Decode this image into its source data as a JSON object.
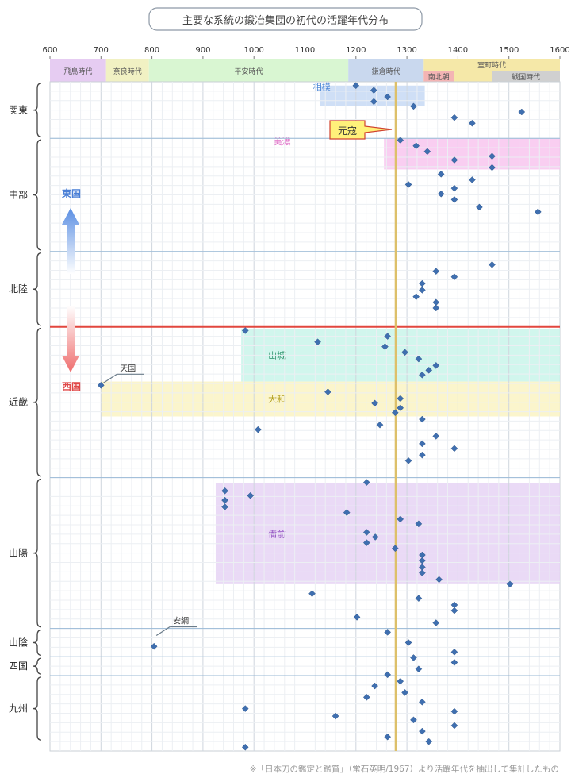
{
  "chart_data": {
    "type": "scatter",
    "title": "主要な系統の鍛冶集団の初代の活躍年代分布",
    "footnote": "※「日本刀の鑑定と鑑賞」（常石英明/1967）より活躍年代を抽出して集計したもの",
    "xlim": [
      600,
      1600
    ],
    "x_ticks": [
      600,
      700,
      800,
      900,
      1000,
      1100,
      1200,
      1300,
      1400,
      1500,
      1600
    ],
    "grid": true,
    "eras": [
      {
        "label": "飛鳥時代",
        "start": 600,
        "end": 710,
        "color": "#e6ccf2"
      },
      {
        "label": "奈良時代",
        "start": 710,
        "end": 794,
        "color": "#f1f1c3"
      },
      {
        "label": "平安時代",
        "start": 794,
        "end": 1185,
        "color": "#d9f6d2"
      },
      {
        "label": "鎌倉時代",
        "start": 1185,
        "end": 1333,
        "color": "#c9d8ee"
      }
    ],
    "muromachi": {
      "label": "室町時代",
      "start": 1333,
      "end": 1600,
      "color": "#f5e8a8"
    },
    "sub_eras": [
      {
        "label": "南北朝",
        "start": 1333,
        "end": 1392,
        "color": "#f4b4b4"
      },
      {
        "label": "戦国時代",
        "start": 1467,
        "end": 1600,
        "color": "#d0d0d0"
      }
    ],
    "genko": {
      "label": "元寇",
      "year": 1278
    },
    "regions": [
      {
        "name": "関東",
        "y0": 0,
        "y1": 6
      },
      {
        "name": "中部",
        "y0": 6,
        "y1": 18
      },
      {
        "name": "北陸",
        "y0": 18,
        "y1": 26
      },
      {
        "name": "近畿",
        "y0": 26,
        "y1": 42
      },
      {
        "name": "山陽",
        "y0": 42,
        "y1": 58
      },
      {
        "name": "山陰",
        "y0": 58,
        "y1": 61
      },
      {
        "name": "四国",
        "y0": 61,
        "y1": 63
      },
      {
        "name": "九州",
        "y0": 63,
        "y1": 70
      }
    ],
    "schools": [
      {
        "label": "相模",
        "x0": 1130,
        "x1": 1335,
        "y0": 0.4,
        "y1": 2.6,
        "color": "#c7d9f5",
        "text_color": "#4a86d6",
        "label_x": 1133
      },
      {
        "label": "美濃",
        "x0": 1255,
        "x1": 1600,
        "y0": 6.0,
        "y1": 9.3,
        "color": "#f8c6ee",
        "text_color": "#e070c8",
        "label_x": 1055
      },
      {
        "label": "山城",
        "x0": 975,
        "x1": 1600,
        "y0": 26.2,
        "y1": 31.8,
        "color": "#c9f4ea",
        "text_color": "#3e9c78",
        "label_x": 1045
      },
      {
        "label": "大和",
        "x0": 700,
        "x1": 1600,
        "y0": 31.8,
        "y1": 35.5,
        "color": "#faf3c3",
        "text_color": "#b3a020",
        "label_x": 1045
      },
      {
        "label": "備前",
        "x0": 925,
        "x1": 1600,
        "y0": 42.6,
        "y1": 53.3,
        "color": "#e6d3f4",
        "text_color": "#9455c3",
        "label_x": 1045
      }
    ],
    "east_label": "東国",
    "west_label": "西国",
    "annotations": [
      {
        "text": "天国",
        "x": 700,
        "y": 32.2
      },
      {
        "text": "安綱",
        "x": 804,
        "y": 59.0
      }
    ],
    "points": [
      [
        1200,
        0.4
      ],
      [
        1235,
        0.9
      ],
      [
        1262,
        1.6
      ],
      [
        1235,
        2.1
      ],
      [
        1313,
        2.6
      ],
      [
        1393,
        3.8
      ],
      [
        1428,
        4.4
      ],
      [
        1525,
        3.2
      ],
      [
        1287,
        6.2
      ],
      [
        1318,
        6.8
      ],
      [
        1340,
        7.4
      ],
      [
        1393,
        8.3
      ],
      [
        1467,
        7.9
      ],
      [
        1467,
        9.1
      ],
      [
        1367,
        9.8
      ],
      [
        1428,
        10.4
      ],
      [
        1303,
        10.9
      ],
      [
        1393,
        11.3
      ],
      [
        1367,
        11.9
      ],
      [
        1393,
        12.5
      ],
      [
        1442,
        13.3
      ],
      [
        1557,
        13.8
      ],
      [
        1467,
        19.4
      ],
      [
        1357,
        20.1
      ],
      [
        1393,
        20.7
      ],
      [
        1330,
        21.4
      ],
      [
        1330,
        22.1
      ],
      [
        1318,
        22.8
      ],
      [
        1357,
        23.4
      ],
      [
        1357,
        24.0
      ],
      [
        983,
        26.4
      ],
      [
        1125,
        27.6
      ],
      [
        1262,
        27.0
      ],
      [
        1257,
        28.1
      ],
      [
        1296,
        28.7
      ],
      [
        1323,
        29.4
      ],
      [
        1357,
        30.1
      ],
      [
        1343,
        30.6
      ],
      [
        1330,
        31.1
      ],
      [
        700,
        32.2
      ],
      [
        1145,
        32.9
      ],
      [
        1287,
        33.6
      ],
      [
        1237,
        34.1
      ],
      [
        1287,
        34.6
      ],
      [
        1277,
        35.1
      ],
      [
        1330,
        35.8
      ],
      [
        1247,
        36.4
      ],
      [
        1008,
        36.9
      ],
      [
        1357,
        37.6
      ],
      [
        1330,
        38.4
      ],
      [
        1393,
        38.9
      ],
      [
        1330,
        39.6
      ],
      [
        1303,
        40.2
      ],
      [
        1221,
        42.5
      ],
      [
        943,
        43.4
      ],
      [
        993,
        43.9
      ],
      [
        943,
        44.4
      ],
      [
        943,
        45.1
      ],
      [
        1182,
        45.7
      ],
      [
        1287,
        46.4
      ],
      [
        1323,
        46.9
      ],
      [
        1221,
        47.8
      ],
      [
        1238,
        48.3
      ],
      [
        1221,
        48.9
      ],
      [
        1277,
        49.5
      ],
      [
        1330,
        50.2
      ],
      [
        1330,
        50.8
      ],
      [
        1330,
        51.5
      ],
      [
        1330,
        52.1
      ],
      [
        1363,
        52.8
      ],
      [
        1502,
        53.3
      ],
      [
        1114,
        54.3
      ],
      [
        1323,
        54.8
      ],
      [
        1393,
        55.5
      ],
      [
        1393,
        56.1
      ],
      [
        1202,
        56.8
      ],
      [
        1357,
        57.4
      ],
      [
        1262,
        58.4
      ],
      [
        1303,
        59.5
      ],
      [
        804,
        59.9
      ],
      [
        1393,
        60.5
      ],
      [
        1313,
        61.1
      ],
      [
        1393,
        61.6
      ],
      [
        1323,
        62.3
      ],
      [
        1262,
        62.9
      ],
      [
        1287,
        63.6
      ],
      [
        1237,
        64.1
      ],
      [
        1296,
        64.8
      ],
      [
        1221,
        65.3
      ],
      [
        1330,
        65.8
      ],
      [
        983,
        66.5
      ],
      [
        1393,
        66.8
      ],
      [
        1160,
        67.3
      ],
      [
        1313,
        67.7
      ],
      [
        1393,
        68.3
      ],
      [
        1330,
        68.9
      ],
      [
        1262,
        69.5
      ],
      [
        1343,
        70.0
      ],
      [
        983,
        70.6
      ]
    ]
  }
}
